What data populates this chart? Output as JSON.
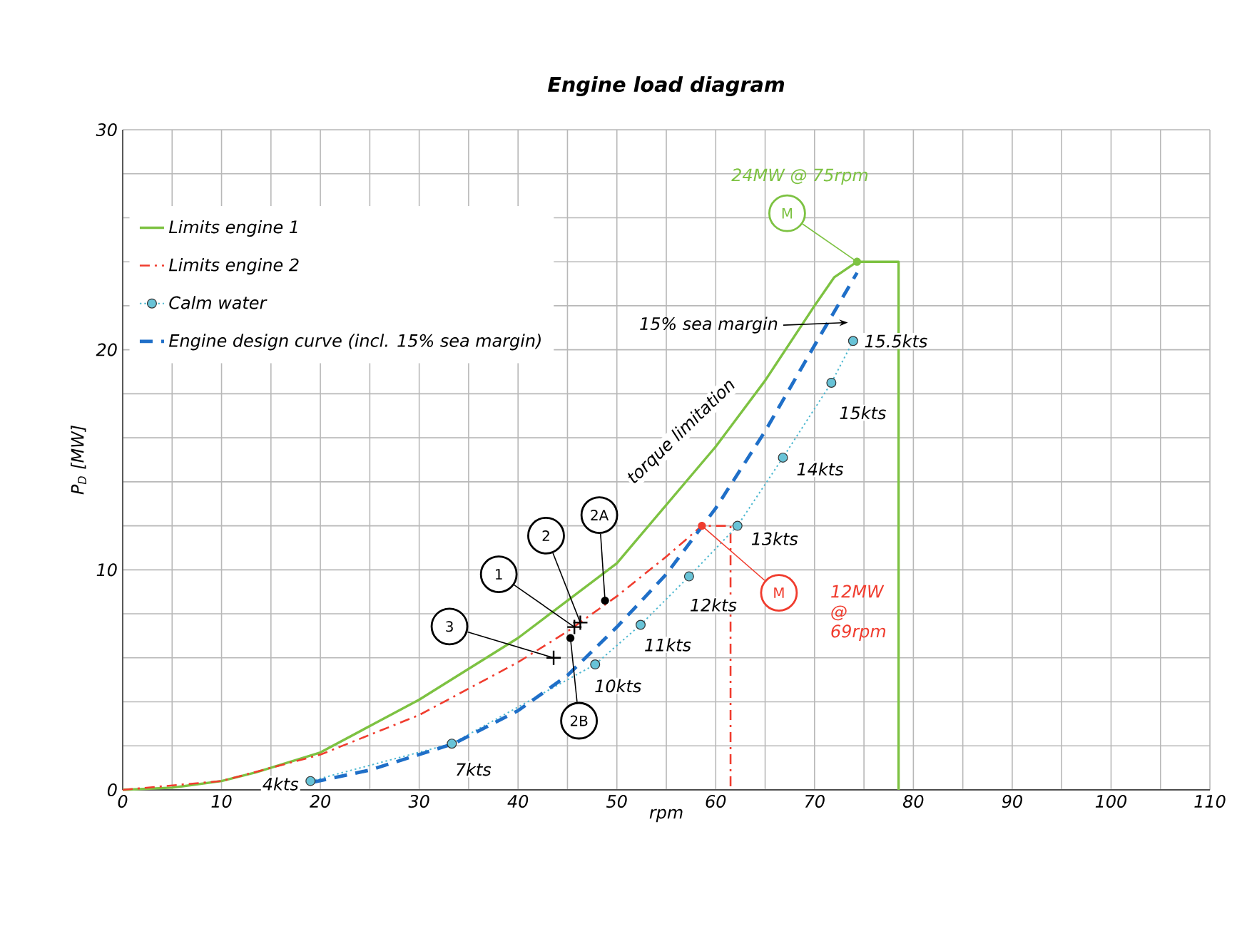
{
  "chart_data": {
    "type": "line",
    "title": "Engine load diagram",
    "xlabel": "rpm",
    "ylabel": "P$_{D}$ [MW]",
    "xlim": [
      0,
      110
    ],
    "ylim": [
      0,
      30
    ],
    "xticks": [
      0,
      10,
      20,
      30,
      40,
      50,
      60,
      70,
      80,
      90,
      100,
      110
    ],
    "yticks": [
      0,
      10,
      20,
      30
    ],
    "grid": true,
    "legend": "top left",
    "series": [
      {
        "name": "Limits engine 1",
        "color": "#7dc242",
        "line_style": "solid",
        "marker": "none",
        "x": [
          0,
          5,
          10,
          13.5,
          20,
          30,
          40,
          50,
          60,
          65,
          70,
          72,
          74.3,
          78.5,
          78.5
        ],
        "values": [
          0,
          0.1,
          0.4,
          0.8,
          1.7,
          4.1,
          6.9,
          10.3,
          15.6,
          18.6,
          22,
          23.3,
          24,
          24,
          0
        ]
      },
      {
        "name": "Limits engine 2",
        "color": "#f03c2e",
        "line_style": "dashdot",
        "marker": "none",
        "x": [
          0,
          10,
          20,
          30,
          40,
          45,
          50,
          55,
          58.6,
          61.5,
          61.5
        ],
        "values": [
          0,
          0.4,
          1.6,
          3.4,
          5.8,
          7.2,
          8.8,
          10.6,
          12,
          12,
          0
        ]
      },
      {
        "name": "Calm water",
        "color": "#4db8d0",
        "line_style": "dotted",
        "marker": "circle",
        "x": [
          19.0,
          33.3,
          47.8,
          52.4,
          57.3,
          62.2,
          66.8,
          71.7,
          73.9
        ],
        "values": [
          0.4,
          2.1,
          5.7,
          7.5,
          9.7,
          12.0,
          15.1,
          18.5,
          20.4
        ]
      },
      {
        "name": "Engine design curve (incl. 15% sea margin)",
        "color": "#1f6fc8",
        "line_style": "dashed",
        "marker": "none",
        "x": [
          19.3,
          25,
          33.5,
          40,
          45,
          50,
          55,
          60,
          65,
          70,
          74.3
        ],
        "values": [
          0.35,
          0.9,
          2.1,
          3.6,
          5.2,
          7.4,
          9.8,
          12.8,
          16.3,
          20.2,
          23.5
        ]
      }
    ],
    "annotations": [
      {
        "text": "1",
        "x": 45.7,
        "y": 7.4
      },
      {
        "text": "2",
        "x": 46.3,
        "y": 7.6
      },
      {
        "text": "2A",
        "x": 48.8,
        "y": 8.6
      },
      {
        "text": "2B",
        "x": 45.3,
        "y": 6.9
      },
      {
        "text": "3",
        "x": 43.6,
        "y": 6.0
      },
      {
        "text": "M",
        "x": 74.3,
        "y": 24
      },
      {
        "text": "M",
        "x": 58.6,
        "y": 12
      },
      "24MW @ 75rpm",
      "12MW @ 69rpm",
      "15% sea margin",
      {
        "text": "torque limitation",
        "x": 57,
        "y": 14
      },
      {
        "text": "4kts",
        "x": 19.0,
        "y": 0.4
      },
      {
        "text": "7kts",
        "x": 33.3,
        "y": 2.1
      },
      {
        "text": "10kts",
        "x": 47.8,
        "y": 5.7
      },
      {
        "text": "11kts",
        "x": 52.4,
        "y": 7.5
      },
      {
        "text": "12kts",
        "x": 57.3,
        "y": 9.7
      },
      {
        "text": "13kts",
        "x": 62.2,
        "y": 12.0
      },
      {
        "text": "14kts",
        "x": 66.8,
        "y": 15.1
      },
      {
        "text": "15kts",
        "x": 71.7,
        "y": 18.5
      },
      {
        "text": "15.5kts",
        "x": 73.9,
        "y": 20.4
      }
    ]
  }
}
